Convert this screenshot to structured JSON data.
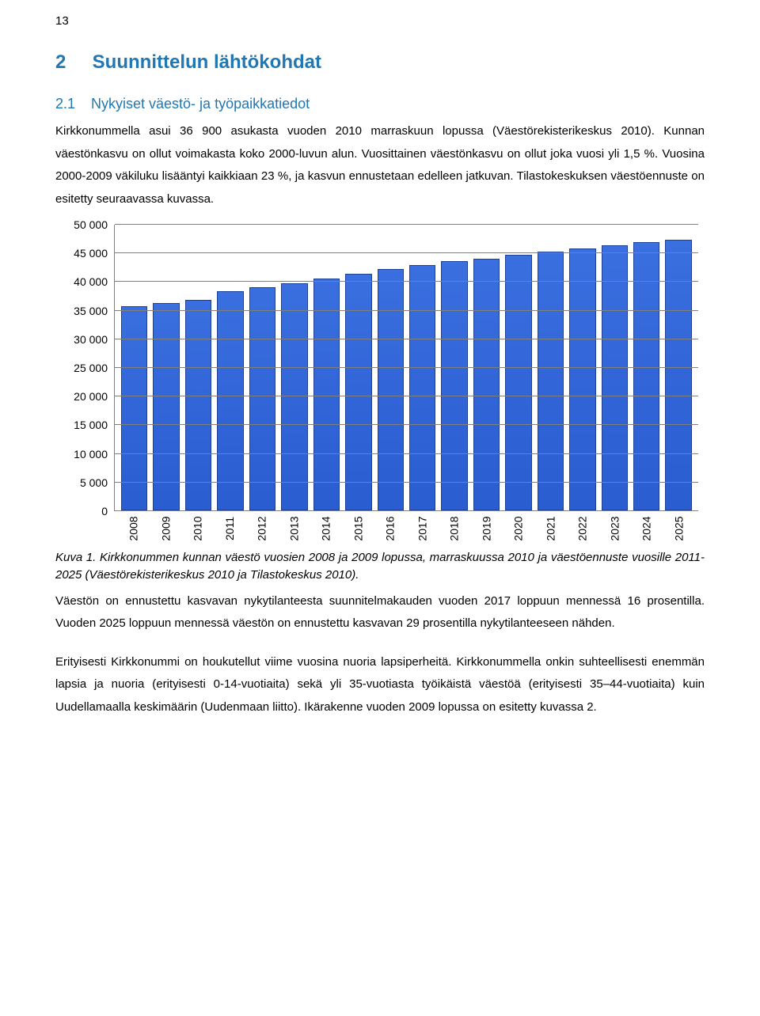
{
  "page_number": "13",
  "heading1": {
    "num": "2",
    "text": "Suunnittelun lähtökohdat"
  },
  "heading2": {
    "num": "2.1",
    "text": "Nykyiset väestö- ja työpaikkatiedot"
  },
  "para1": "Kirkkonummella asui 36 900 asukasta vuoden 2010 marraskuun lopussa (Väestörekisterikeskus 2010). Kunnan väestönkasvu on ollut voimakasta koko 2000-luvun alun. Vuosittainen väestönkasvu on ollut joka vuosi yli 1,5 %. Vuosina 2000-2009 väkiluku lisääntyi kaikkiaan 23 %, ja kasvun ennustetaan edelleen jatkuvan. Tilastokeskuksen väestöennuste on esitetty seuraavassa kuvassa.",
  "caption": "Kuva 1. Kirkkonummen kunnan väestö vuosien 2008 ja 2009 lopussa, marraskuussa 2010 ja väestöennuste vuosille 2011-2025 (Väestörekisterikeskus 2010 ja Tilastokeskus 2010).",
  "para2": "Väestön on ennustettu kasvavan nykytilanteesta suunnitelmakauden vuoden 2017 loppuun mennessä 16 prosentilla. Vuoden 2025 loppuun mennessä väestön on ennustettu kasvavan 29 prosentilla nykytilanteeseen nähden.",
  "para3": "Erityisesti Kirkkonummi on houkutellut viime vuosina nuoria lapsiperheitä. Kirkkonummella onkin suhteellisesti enemmän lapsia ja nuoria (erityisesti 0-14-vuotiaita) sekä yli 35-vuotiasta työikäistä väestöä (erityisesti 35–44-vuotiaita) kuin Uudellamaalla keskimäärin (Uudenmaan liitto). Ikärakenne vuoden 2009 lopussa on esitetty kuvassa 2.",
  "chart": {
    "type": "bar",
    "categories": [
      "2008",
      "2009",
      "2010",
      "2011",
      "2012",
      "2013",
      "2014",
      "2015",
      "2016",
      "2017",
      "2018",
      "2019",
      "2020",
      "2021",
      "2022",
      "2023",
      "2024",
      "2025"
    ],
    "values": [
      35800,
      36300,
      36900,
      38400,
      39000,
      39800,
      40600,
      41400,
      42300,
      43000,
      43700,
      44100,
      44800,
      45300,
      45800,
      46400,
      46900,
      47400
    ],
    "bar_fill": "#2a5dd0",
    "bar_border": "#1d3f95",
    "ylim": [
      0,
      50000
    ],
    "ytick_step": 5000,
    "y_tick_labels": [
      "0",
      "5 000",
      "10 000",
      "15 000",
      "20 000",
      "25 000",
      "30 000",
      "35 000",
      "40 000",
      "45 000",
      "50 000"
    ],
    "grid_color": "#808080",
    "axis_color": "#808080",
    "label_fontsize": 14,
    "background_color": "#ffffff"
  },
  "colors": {
    "heading": "#1f78b4",
    "text": "#000000"
  }
}
